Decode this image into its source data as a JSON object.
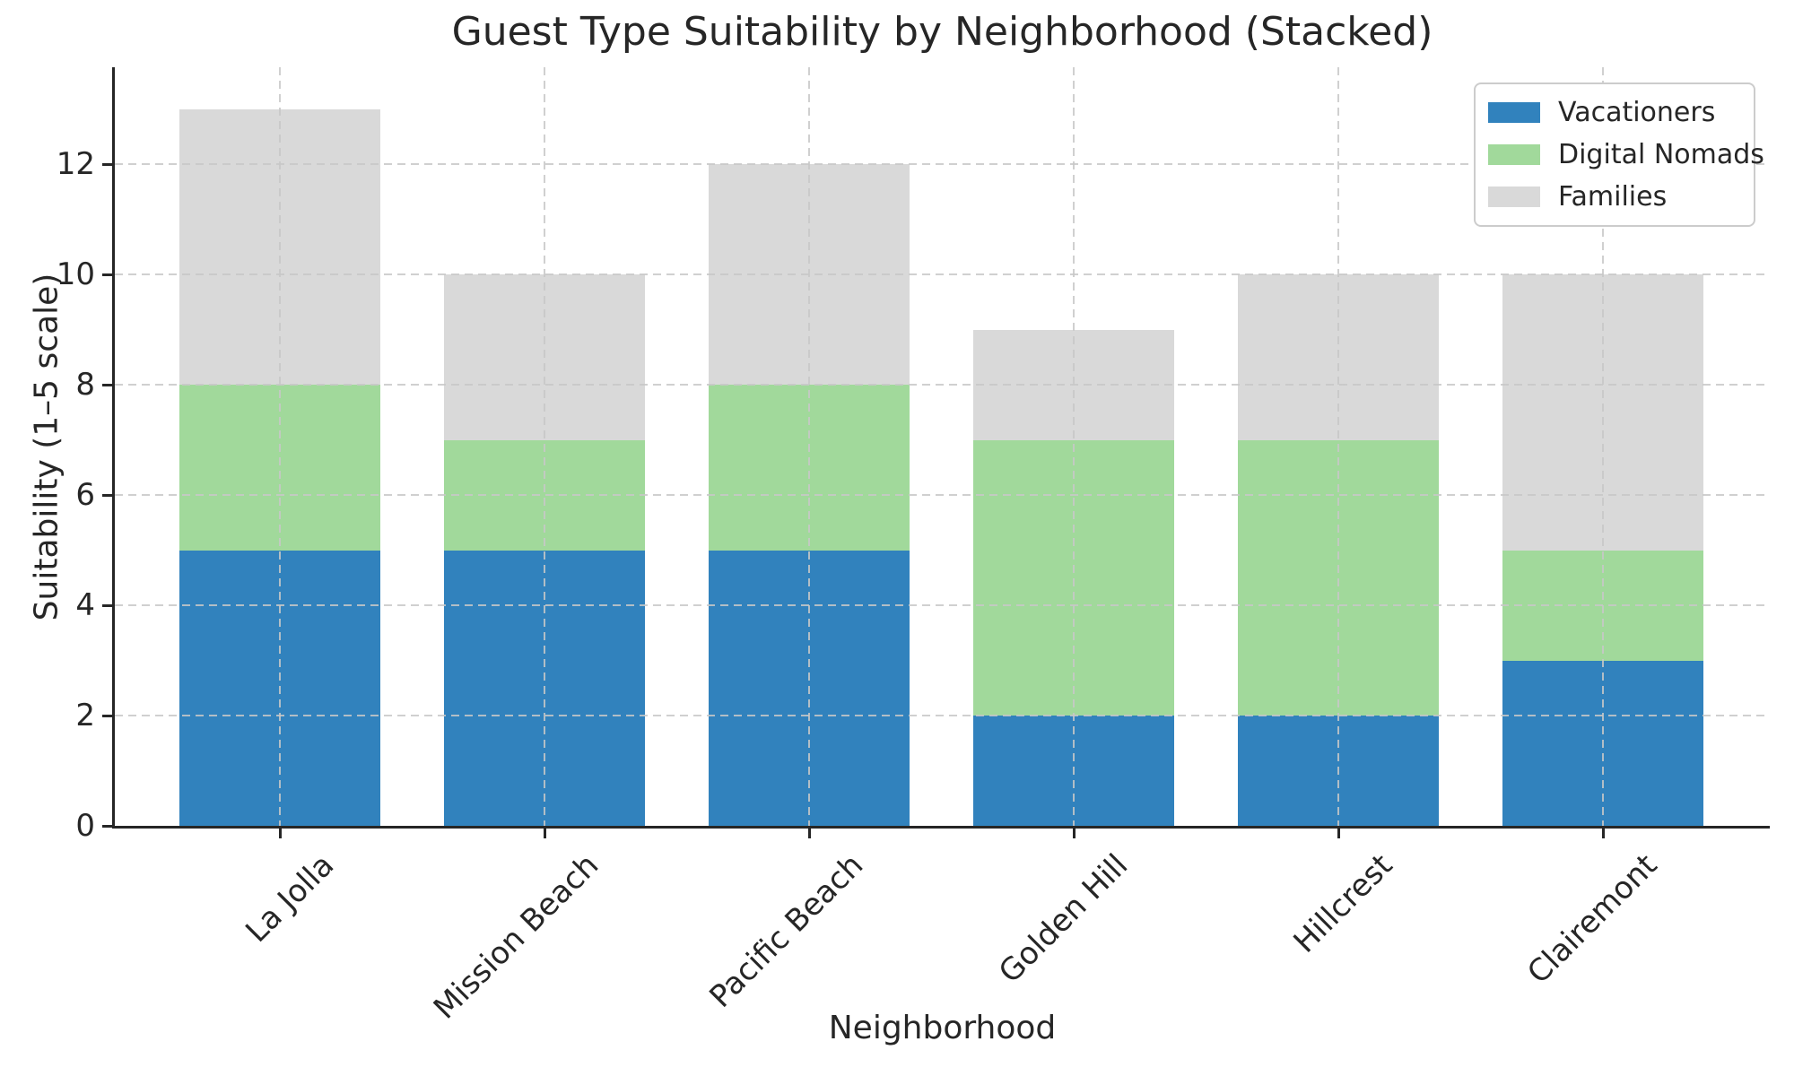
{
  "chart_data": {
    "type": "bar",
    "stacked": true,
    "title": "Guest Type Suitability by Neighborhood (Stacked)",
    "xlabel": "Neighborhood",
    "ylabel": "Suitability (1–5 scale)",
    "categories": [
      "La Jolla",
      "Mission Beach",
      "Pacific Beach",
      "Golden Hill",
      "Hillcrest",
      "Clairemont"
    ],
    "series": [
      {
        "name": "Vacationers",
        "color": "#3182bd",
        "values": [
          5,
          5,
          5,
          2,
          2,
          3
        ]
      },
      {
        "name": "Digital Nomads",
        "color": "#a1d99b",
        "values": [
          3,
          2,
          3,
          5,
          5,
          2
        ]
      },
      {
        "name": "Families",
        "color": "#d9d9d9",
        "values": [
          5,
          3,
          4,
          2,
          3,
          5
        ]
      }
    ],
    "totals": [
      13,
      10,
      12,
      9,
      10,
      10
    ],
    "yticks": [
      0,
      2,
      4,
      6,
      8,
      10,
      12
    ],
    "ylim": [
      0,
      13.76
    ],
    "grid": true,
    "grid_style": "dashed",
    "legend_position": "upper right",
    "legend_entries": [
      "Vacationers",
      "Digital Nomads",
      "Families"
    ]
  },
  "style_colors": {
    "spine": "#262626",
    "text": "#262626",
    "gridline": "#c8c8c8",
    "background": "#ffffff"
  }
}
